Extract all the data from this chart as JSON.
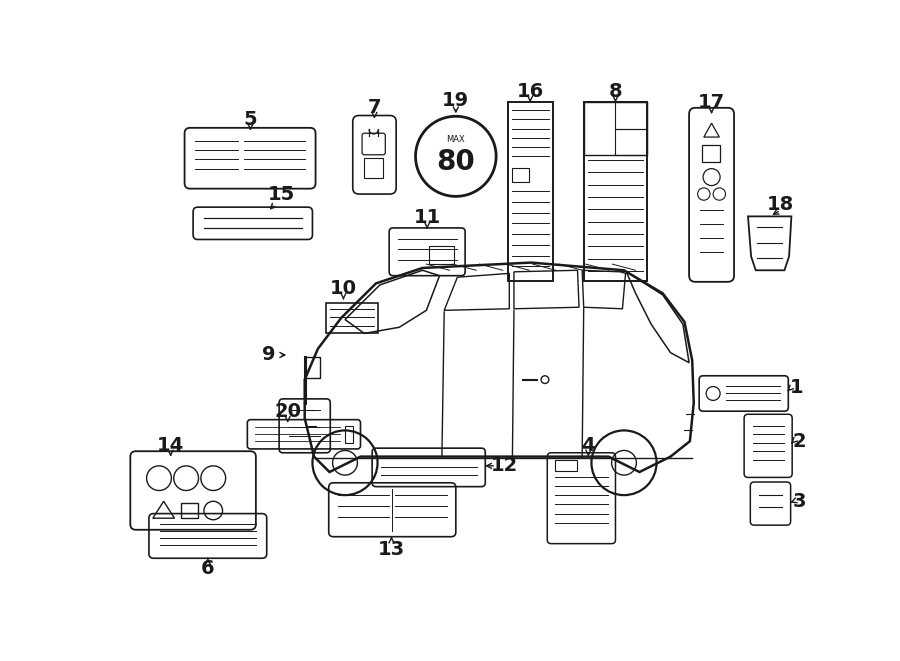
{
  "bg_color": "#ffffff",
  "lc": "#1a1a1a",
  "fig_w": 9.0,
  "fig_h": 6.61,
  "dpi": 100
}
